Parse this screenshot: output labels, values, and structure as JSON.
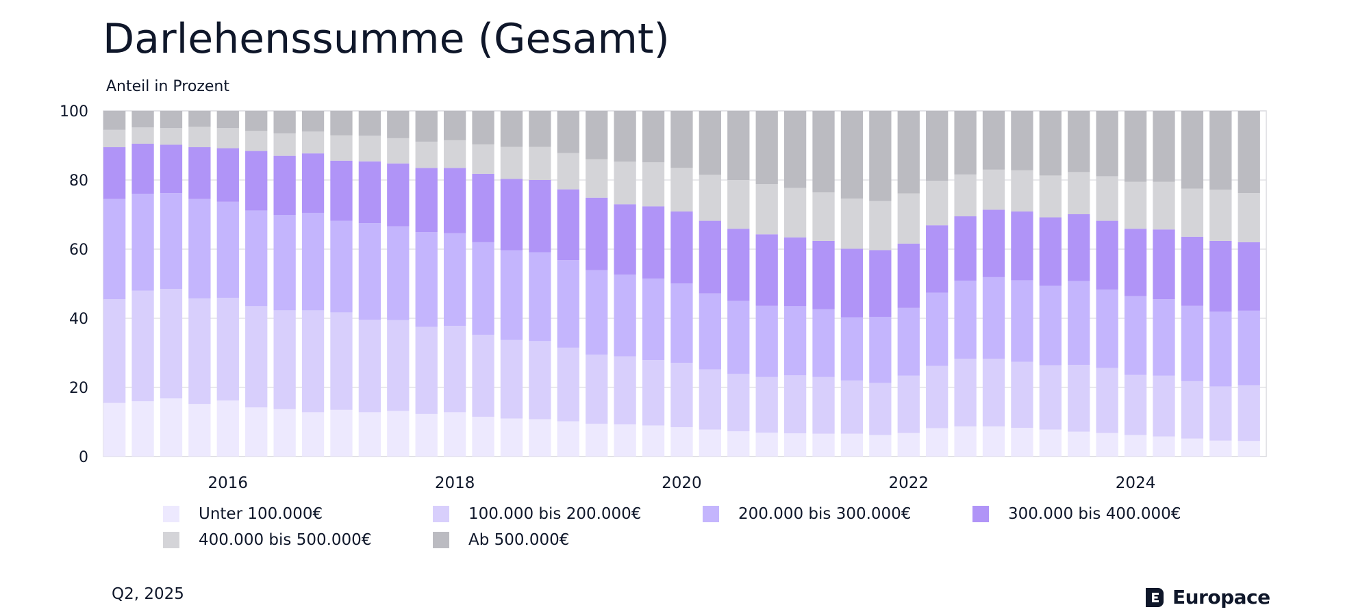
{
  "title": "Darlehenssumme (Gesamt)",
  "footer": {
    "date": "Q2, 2025",
    "brand": "Europace"
  },
  "icons": {
    "brand": "europace-logo-icon"
  },
  "chart_data": {
    "type": "bar",
    "stacked": true,
    "title": "Darlehenssumme (Gesamt)",
    "ylabel": "Anteil in Prozent",
    "xlabel": "",
    "ylim": [
      0,
      100
    ],
    "yticks": [
      0,
      20,
      40,
      60,
      80,
      100
    ],
    "xticks": [
      "2016",
      "2018",
      "2020",
      "2022",
      "2024"
    ],
    "x_tick_years": [
      2016,
      2018,
      2020,
      2022,
      2024
    ],
    "x_start": 2015.0,
    "x_step": 0.25,
    "grid": true,
    "legend_position": "bottom",
    "series": [
      {
        "name": "Unter 100.000€",
        "color": "#ede9fe",
        "values": [
          15.5,
          16,
          16.8,
          15.2,
          16.2,
          14.2,
          13.7,
          12.8,
          13.5,
          12.8,
          13.2,
          12.3,
          12.8,
          11.5,
          11,
          10.8,
          10.2,
          9.5,
          9.3,
          9,
          8.5,
          7.8,
          7.3,
          6.9,
          6.7,
          6.6,
          6.6,
          6.2,
          6.8,
          8.2,
          8.7,
          8.7,
          8.3,
          7.8,
          7.2,
          6.8,
          6.2,
          5.8,
          5.2,
          4.6,
          4.5
        ]
      },
      {
        "name": "100.000 bis 200.000€",
        "color": "#d8cffc",
        "values": [
          30,
          32,
          31.7,
          30.5,
          29.7,
          29.3,
          28.6,
          29.5,
          28.2,
          26.8,
          26.3,
          25.2,
          25,
          23.7,
          22.7,
          22.6,
          21.3,
          20,
          19.7,
          18.9,
          18.6,
          17.4,
          16.6,
          16.1,
          16.8,
          16.4,
          15.4,
          15.1,
          16.6,
          18,
          19.6,
          19.6,
          19.1,
          18.6,
          19.3,
          18.8,
          17.4,
          17.6,
          16.6,
          15.7,
          16.1
        ]
      },
      {
        "name": "200.000 bis 300.000€",
        "color": "#c4b5fd",
        "values": [
          29,
          28,
          27.7,
          28.8,
          27.8,
          27.7,
          27.6,
          28.2,
          26.5,
          27.9,
          27.1,
          27.4,
          26.8,
          26.8,
          26,
          25.7,
          25.3,
          24.4,
          23.6,
          23.6,
          23,
          22,
          21.1,
          20.6,
          20,
          19.6,
          18.3,
          19.1,
          19.6,
          21.2,
          22.6,
          23.6,
          23.6,
          23,
          24.3,
          22.7,
          22.8,
          22.1,
          21.8,
          21.6,
          21.6
        ]
      },
      {
        "name": "300.000 bis 400.000€",
        "color": "#b094f7",
        "values": [
          15,
          14.5,
          14,
          15,
          15.5,
          17.2,
          17.1,
          17.2,
          17.4,
          17.9,
          18.2,
          18.6,
          18.9,
          19.8,
          20.6,
          20.9,
          20.5,
          21,
          20.4,
          20.9,
          20.8,
          21,
          20.9,
          20.7,
          19.9,
          19.8,
          19.8,
          19.3,
          18.6,
          19.5,
          18.6,
          19.5,
          19.9,
          19.8,
          19.3,
          19.9,
          19.5,
          20.2,
          20,
          20.5,
          19.8
        ]
      },
      {
        "name": "400.000 bis 500.000€",
        "color": "#d4d4d8",
        "values": [
          5,
          4.7,
          4.8,
          5.9,
          5.8,
          5.8,
          6.5,
          6.3,
          7.3,
          7.4,
          7.3,
          7.6,
          8,
          8.5,
          9.3,
          9.6,
          10.5,
          11.1,
          12.3,
          12.7,
          12.6,
          13.3,
          14.1,
          14.5,
          14.3,
          14,
          14.5,
          14.2,
          14.5,
          12.9,
          12.1,
          11.6,
          11.9,
          12.1,
          12.2,
          12.9,
          13.6,
          13.8,
          13.9,
          14.8,
          14.2
        ]
      },
      {
        "name": "Ab 500.000€",
        "color": "#bbbbc1",
        "values": [
          5.5,
          4.8,
          5,
          4.6,
          5,
          5.8,
          6.5,
          6,
          7.1,
          7.2,
          7.9,
          8.9,
          8.5,
          9.7,
          10.4,
          10.4,
          12.2,
          14,
          14.7,
          14.9,
          16.5,
          18.5,
          20,
          21.2,
          22.3,
          23.6,
          25.4,
          26.1,
          23.9,
          20.2,
          18.4,
          17,
          17.2,
          18.7,
          17.7,
          18.9,
          20.5,
          20.5,
          22.5,
          22.8,
          23.8
        ]
      }
    ]
  }
}
